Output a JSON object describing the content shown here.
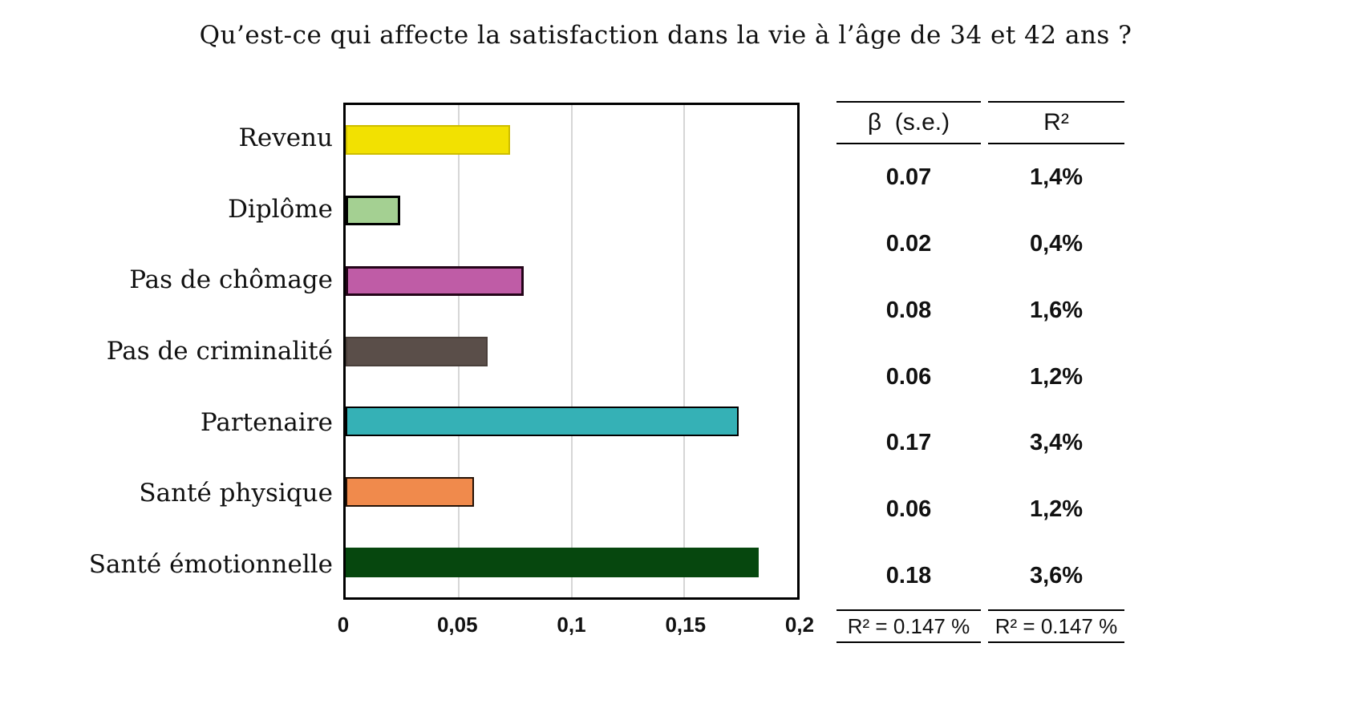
{
  "title": "Qu’est-ce qui affecte la satisfaction dans la vie à l’âge de 34 et 42 ans ?",
  "chart_data": {
    "type": "bar",
    "orientation": "horizontal",
    "title": "Qu’est-ce qui affecte la satisfaction dans la vie à l’âge de 34 et 42 ans ?",
    "categories": [
      "Revenu",
      "Diplôme",
      "Pas de chômage",
      "Pas de criminalité",
      "Partenaire",
      "Santé physique",
      "Santé émotionnelle"
    ],
    "values": [
      0.073,
      0.024,
      0.079,
      0.063,
      0.174,
      0.057,
      0.183
    ],
    "bar_colors": [
      "#f2e101",
      "#a4d092",
      "#bf5ca6",
      "#5a4e49",
      "#35b1b6",
      "#f08a4c",
      "#06470e"
    ],
    "bar_border_colors": [
      "#cdbd00",
      "#000000",
      "#230418",
      "#493f3a",
      "#000000",
      "#241206",
      "#06470e"
    ],
    "xlabel": "",
    "ylabel": "",
    "xlim": [
      0,
      0.2
    ],
    "x_ticks": [
      "0",
      "0,05",
      "0,1",
      "0,15",
      "0,2"
    ],
    "x_tick_values": [
      0,
      0.05,
      0.1,
      0.15,
      0.2
    ],
    "gridlines": [
      0.05,
      0.1,
      0.15
    ],
    "grid_color": "#d6d6d6",
    "legend": "none"
  },
  "stats_table": {
    "columns": [
      {
        "header": "β  (s.e.)",
        "footer": "R² = 0.147 %"
      },
      {
        "header": "R²",
        "footer": "R² = 0.147 %"
      }
    ],
    "rows": [
      {
        "beta": "0.07",
        "r2": "1,4%"
      },
      {
        "beta": "0.02",
        "r2": "0,4%"
      },
      {
        "beta": "0.08",
        "r2": "1,6%"
      },
      {
        "beta": "0.06",
        "r2": "1,2%"
      },
      {
        "beta": "0.17",
        "r2": "3,4%"
      },
      {
        "beta": "0.06",
        "r2": "1,2%"
      },
      {
        "beta": "0.18",
        "r2": "3,6%"
      }
    ]
  }
}
